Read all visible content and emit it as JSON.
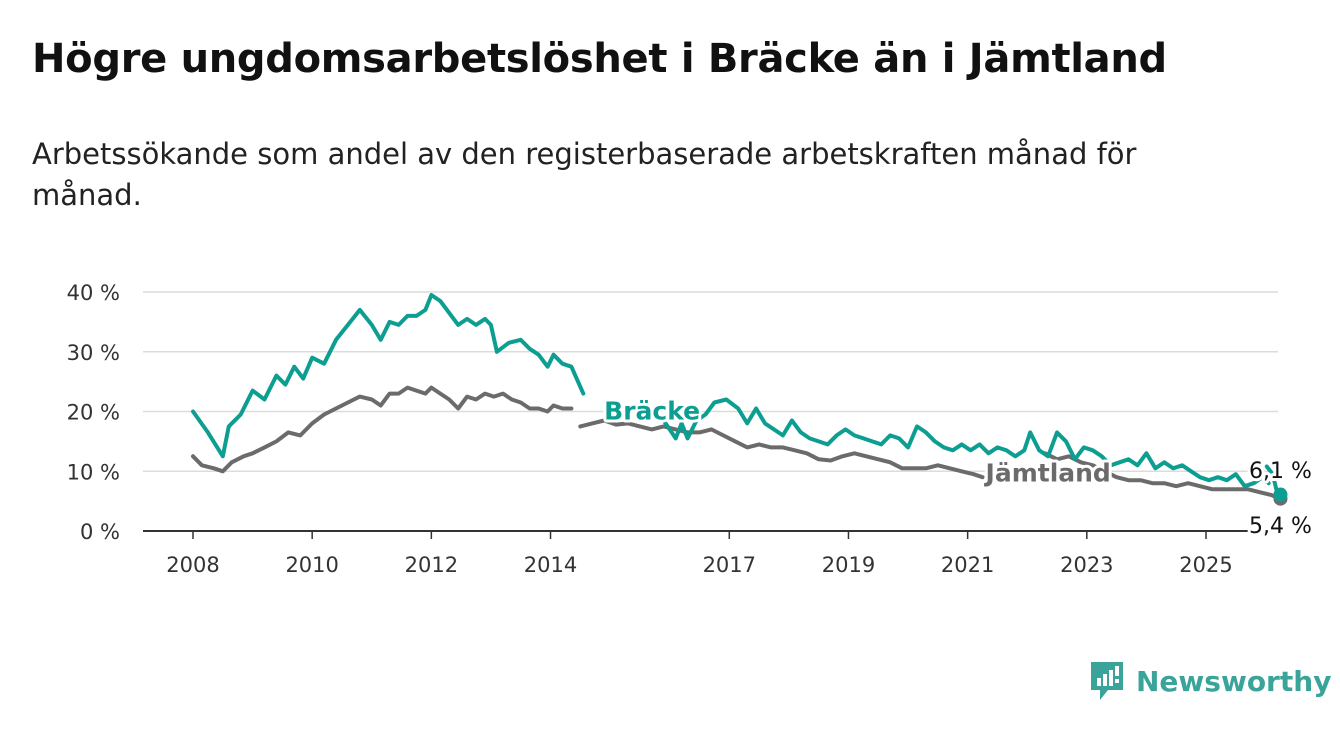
{
  "title": "Högre ungdomsarbetslöshet i Bräcke än i Jämtland",
  "subtitle": "Arbetssökande som andel av den registerbaserade arbetskraften månad för månad.",
  "brand": {
    "name": "Newsworthy",
    "icon": "newsworthy-logo-icon",
    "color": "#3aa39a"
  },
  "chart_data": {
    "type": "line",
    "title": "Högre ungdomsarbetslöshet i Bräcke än i Jämtland",
    "xlabel": "",
    "ylabel": "",
    "ylim": [
      0,
      40
    ],
    "yticks": [
      0,
      10,
      20,
      30,
      40
    ],
    "ytick_labels": [
      "0 %",
      "10 %",
      "20 %",
      "30 %",
      "40 %"
    ],
    "xlim": [
      2008,
      2026.2
    ],
    "xticks": [
      2008,
      2010,
      2012,
      2014,
      2017,
      2019,
      2021,
      2023,
      2025
    ],
    "xtick_labels": [
      "2008",
      "2010",
      "2012",
      "2014",
      "2017",
      "2019",
      "2021",
      "2023",
      "2025"
    ],
    "grid": true,
    "series": [
      {
        "name": "Bräcke",
        "color": "#0d9e92",
        "end_label": "6,1 %",
        "points": [
          [
            2008.0,
            20
          ],
          [
            2008.25,
            16.5
          ],
          [
            2008.5,
            12.5
          ],
          [
            2008.6,
            17.5
          ],
          [
            2008.8,
            19.5
          ],
          [
            2009.0,
            23.5
          ],
          [
            2009.2,
            22
          ],
          [
            2009.4,
            26
          ],
          [
            2009.55,
            24.5
          ],
          [
            2009.7,
            27.5
          ],
          [
            2009.85,
            25.5
          ],
          [
            2010.0,
            29
          ],
          [
            2010.2,
            28
          ],
          [
            2010.4,
            32
          ],
          [
            2010.6,
            34.5
          ],
          [
            2010.8,
            37
          ],
          [
            2011.0,
            34.5
          ],
          [
            2011.15,
            32
          ],
          [
            2011.3,
            35
          ],
          [
            2011.45,
            34.5
          ],
          [
            2011.6,
            36
          ],
          [
            2011.75,
            36
          ],
          [
            2011.9,
            37
          ],
          [
            2012.0,
            39.5
          ],
          [
            2012.15,
            38.5
          ],
          [
            2012.3,
            36.5
          ],
          [
            2012.45,
            34.5
          ],
          [
            2012.6,
            35.5
          ],
          [
            2012.75,
            34.5
          ],
          [
            2012.9,
            35.5
          ],
          [
            2013.0,
            34.5
          ],
          [
            2013.1,
            30
          ],
          [
            2013.3,
            31.5
          ],
          [
            2013.5,
            32
          ],
          [
            2013.65,
            30.5
          ],
          [
            2013.8,
            29.5
          ],
          [
            2013.95,
            27.5
          ],
          [
            2014.05,
            29.5
          ],
          [
            2014.2,
            28
          ],
          [
            2014.35,
            27.5
          ],
          [
            2014.55,
            23
          ]
        ],
        "segments": [
          [
            [
              2015.9,
              18.5
            ],
            [
              2016.1,
              15.5
            ],
            [
              2016.2,
              18
            ],
            [
              2016.3,
              15.5
            ],
            [
              2016.45,
              18.5
            ],
            [
              2016.6,
              19.5
            ],
            [
              2016.75,
              21.5
            ],
            [
              2016.95,
              22
            ],
            [
              2017.15,
              20.5
            ],
            [
              2017.3,
              18
            ],
            [
              2017.45,
              20.5
            ],
            [
              2017.6,
              18
            ],
            [
              2017.75,
              17
            ],
            [
              2017.9,
              16
            ],
            [
              2018.05,
              18.5
            ],
            [
              2018.2,
              16.5
            ],
            [
              2018.35,
              15.5
            ],
            [
              2018.5,
              15
            ],
            [
              2018.65,
              14.5
            ],
            [
              2018.8,
              16
            ],
            [
              2018.95,
              17
            ],
            [
              2019.1,
              16
            ],
            [
              2019.25,
              15.5
            ],
            [
              2019.4,
              15
            ],
            [
              2019.55,
              14.5
            ],
            [
              2019.7,
              16
            ],
            [
              2019.85,
              15.5
            ],
            [
              2020.0,
              14
            ],
            [
              2020.15,
              17.5
            ],
            [
              2020.3,
              16.5
            ],
            [
              2020.45,
              15
            ],
            [
              2020.6,
              14
            ],
            [
              2020.75,
              13.5
            ],
            [
              2020.9,
              14.5
            ],
            [
              2021.05,
              13.5
            ],
            [
              2021.2,
              14.5
            ],
            [
              2021.35,
              13
            ],
            [
              2021.5,
              14
            ],
            [
              2021.65,
              13.5
            ],
            [
              2021.8,
              12.5
            ],
            [
              2021.95,
              13.5
            ],
            [
              2022.05,
              16.5
            ],
            [
              2022.2,
              13.5
            ],
            [
              2022.35,
              12.5
            ],
            [
              2022.5,
              16.5
            ],
            [
              2022.65,
              15
            ],
            [
              2022.8,
              12
            ],
            [
              2022.95,
              14
            ],
            [
              2023.1,
              13.5
            ],
            [
              2023.25,
              12.5
            ],
            [
              2023.4,
              11
            ],
            [
              2023.55,
              11.5
            ],
            [
              2023.7,
              12
            ],
            [
              2023.85,
              11
            ],
            [
              2024.0,
              13
            ],
            [
              2024.15,
              10.5
            ],
            [
              2024.3,
              11.5
            ],
            [
              2024.45,
              10.5
            ],
            [
              2024.6,
              11
            ],
            [
              2024.75,
              10
            ],
            [
              2024.9,
              9
            ],
            [
              2025.05,
              8.5
            ],
            [
              2025.2,
              9
            ],
            [
              2025.35,
              8.5
            ],
            [
              2025.5,
              9.5
            ],
            [
              2025.65,
              7.5
            ],
            [
              2025.8,
              8
            ],
            [
              2025.95,
              9
            ],
            [
              2026.05,
              8
            ]
          ],
          [
            [
              2026.02,
              10.8
            ],
            [
              2026.12,
              9.5
            ],
            [
              2026.18,
              7
            ],
            [
              2026.25,
              6.1
            ]
          ]
        ]
      },
      {
        "name": "Jämtland",
        "color": "#6b6b6b",
        "end_label": "5,4 %",
        "points": [
          [
            2008.0,
            12.5
          ],
          [
            2008.15,
            11
          ],
          [
            2008.35,
            10.5
          ],
          [
            2008.5,
            10
          ],
          [
            2008.65,
            11.5
          ],
          [
            2008.85,
            12.5
          ],
          [
            2009.0,
            13
          ],
          [
            2009.2,
            14
          ],
          [
            2009.4,
            15
          ],
          [
            2009.6,
            16.5
          ],
          [
            2009.8,
            16
          ],
          [
            2010.0,
            18
          ],
          [
            2010.2,
            19.5
          ],
          [
            2010.4,
            20.5
          ],
          [
            2010.6,
            21.5
          ],
          [
            2010.8,
            22.5
          ],
          [
            2011.0,
            22
          ],
          [
            2011.15,
            21
          ],
          [
            2011.3,
            23
          ],
          [
            2011.45,
            23
          ],
          [
            2011.6,
            24
          ],
          [
            2011.75,
            23.5
          ],
          [
            2011.9,
            23
          ],
          [
            2012.0,
            24
          ],
          [
            2012.15,
            23
          ],
          [
            2012.3,
            22
          ],
          [
            2012.45,
            20.5
          ],
          [
            2012.6,
            22.5
          ],
          [
            2012.75,
            22
          ],
          [
            2012.9,
            23
          ],
          [
            2013.05,
            22.5
          ],
          [
            2013.2,
            23
          ],
          [
            2013.35,
            22
          ],
          [
            2013.5,
            21.5
          ],
          [
            2013.65,
            20.5
          ],
          [
            2013.8,
            20.5
          ],
          [
            2013.95,
            20
          ],
          [
            2014.05,
            21
          ],
          [
            2014.2,
            20.5
          ],
          [
            2014.35,
            20.5
          ]
        ],
        "segments": [
          [
            [
              2014.5,
              17.5
            ],
            [
              2014.7,
              18
            ],
            [
              2014.9,
              18.5
            ],
            [
              2015.1,
              17.8
            ],
            [
              2015.3,
              18
            ],
            [
              2015.5,
              17.5
            ],
            [
              2015.7,
              17
            ],
            [
              2015.9,
              17.5
            ],
            [
              2016.1,
              17
            ],
            [
              2016.3,
              16.5
            ],
            [
              2016.5,
              16.5
            ],
            [
              2016.7,
              17
            ],
            [
              2016.9,
              16
            ],
            [
              2017.1,
              15
            ],
            [
              2017.3,
              14
            ],
            [
              2017.5,
              14.5
            ],
            [
              2017.7,
              14
            ],
            [
              2017.9,
              14
            ],
            [
              2018.1,
              13.5
            ],
            [
              2018.3,
              13
            ],
            [
              2018.5,
              12
            ],
            [
              2018.7,
              11.8
            ],
            [
              2018.9,
              12.5
            ],
            [
              2019.1,
              13
            ],
            [
              2019.3,
              12.5
            ],
            [
              2019.5,
              12
            ],
            [
              2019.7,
              11.5
            ],
            [
              2019.9,
              10.5
            ],
            [
              2020.1,
              10.5
            ],
            [
              2020.3,
              10.5
            ],
            [
              2020.5,
              11
            ],
            [
              2020.7,
              10.5
            ],
            [
              2020.9,
              10
            ],
            [
              2021.1,
              9.5
            ],
            [
              2021.25,
              9
            ]
          ],
          [
            [
              2022.3,
              13
            ],
            [
              2022.5,
              12
            ],
            [
              2022.7,
              12.5
            ],
            [
              2022.9,
              11.5
            ],
            [
              2023.1,
              11
            ],
            [
              2023.3,
              10
            ],
            [
              2023.5,
              9
            ],
            [
              2023.7,
              8.5
            ],
            [
              2023.9,
              8.5
            ],
            [
              2024.1,
              8
            ],
            [
              2024.3,
              8
            ],
            [
              2024.5,
              7.5
            ],
            [
              2024.7,
              8
            ],
            [
              2024.9,
              7.5
            ],
            [
              2025.1,
              7
            ],
            [
              2025.3,
              7
            ],
            [
              2025.5,
              7
            ],
            [
              2025.7,
              7
            ],
            [
              2025.9,
              6.5
            ],
            [
              2026.1,
              6
            ],
            [
              2026.25,
              5.4
            ]
          ]
        ]
      }
    ],
    "annotations": [
      {
        "text": "Bräcke",
        "series": "Bräcke",
        "x": 2014.9,
        "y": 20
      },
      {
        "text": "Jämtland",
        "series": "Jämtland",
        "x": 2021.3,
        "y": 9.6
      },
      {
        "text": "6,1 %",
        "series": "Bräcke",
        "x": 2026.25,
        "y": 10.2
      },
      {
        "text": "5,4 %",
        "series": "Jämtland",
        "x": 2026.25,
        "y": 1.0
      }
    ]
  }
}
